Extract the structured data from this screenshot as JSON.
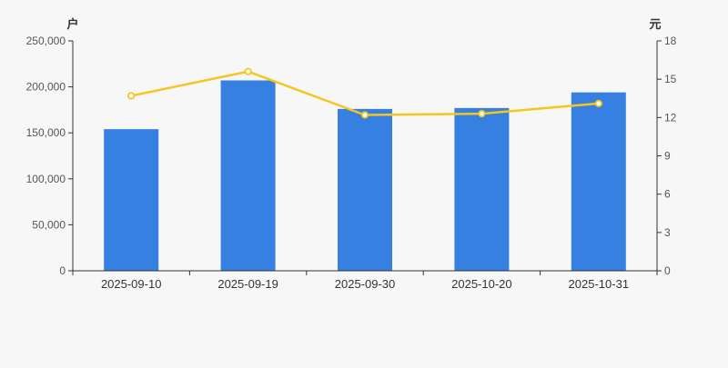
{
  "chart_data": {
    "type": "bar+line",
    "title": "",
    "categories": [
      "2025-09-10",
      "2025-09-19",
      "2025-09-30",
      "2025-10-20",
      "2025-10-31"
    ],
    "series": [
      {
        "name": "bar-series",
        "type": "bar",
        "y_axis": "left",
        "color": "#3580e0",
        "values": [
          154000,
          207000,
          176000,
          177000,
          194000
        ]
      },
      {
        "name": "line-series",
        "type": "line",
        "y_axis": "right",
        "color": "#f6c51e",
        "marker": "empty-circle",
        "marker_fill": "#ffffff",
        "values": [
          13.7,
          15.6,
          12.2,
          12.3,
          13.1
        ]
      }
    ],
    "left_axis": {
      "name": "户",
      "min": 0,
      "max": 250000,
      "interval": 50000,
      "tick_labels": [
        "0",
        "50,000",
        "100,000",
        "150,000",
        "200,000",
        "250,000"
      ]
    },
    "right_axis": {
      "name": "元",
      "min": 0,
      "max": 18,
      "interval": 3,
      "tick_labels": [
        "0",
        "3",
        "6",
        "9",
        "12",
        "15",
        "18"
      ]
    },
    "grid": "off",
    "legend": "none",
    "background": "#f7f7f7",
    "tick_text_color": "#555555",
    "category_text_color": "#333333",
    "axis_line_color": "#333333"
  }
}
